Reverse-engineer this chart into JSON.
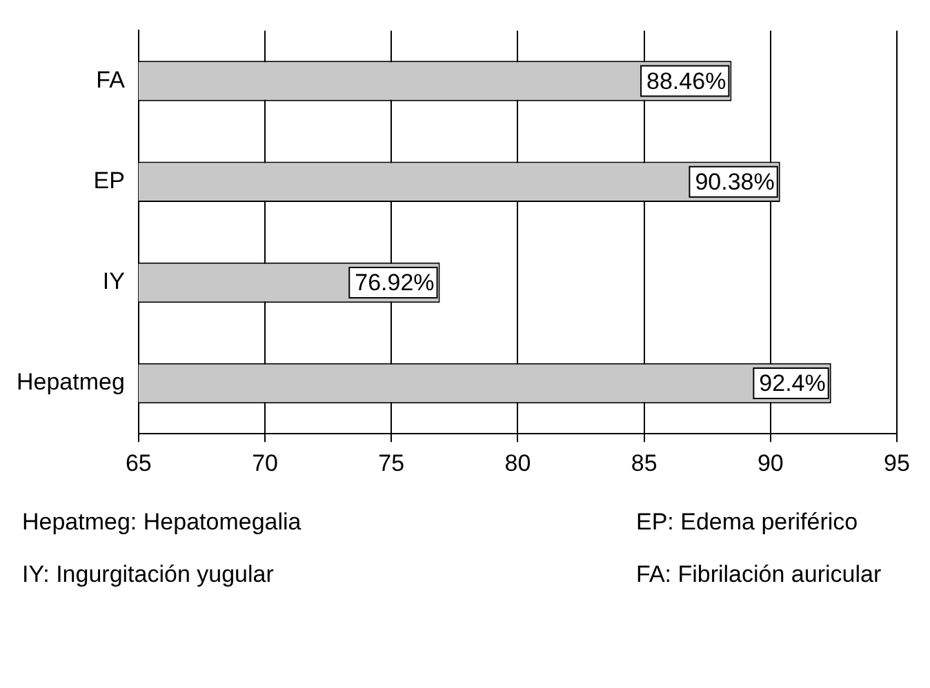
{
  "chart_data": {
    "type": "bar",
    "orientation": "horizontal",
    "categories": [
      "FA",
      "EP",
      "IY",
      "Hepatmeg"
    ],
    "values": [
      88.46,
      90.38,
      76.92,
      92.4
    ],
    "value_labels": [
      "88.46%",
      "90.38%",
      "76.92%",
      "92.4%"
    ],
    "color": "#c8c8c8",
    "xlim": [
      65,
      95
    ],
    "xticks": [
      65,
      70,
      75,
      80,
      85,
      90,
      95
    ],
    "grid": "x",
    "legend": false,
    "annotations": [
      "Hepatmeg: Hepatomegalia",
      "EP: Edema periférico",
      "IY: Ingurgitación yugular",
      "FA: Fibrilación auricular"
    ]
  }
}
